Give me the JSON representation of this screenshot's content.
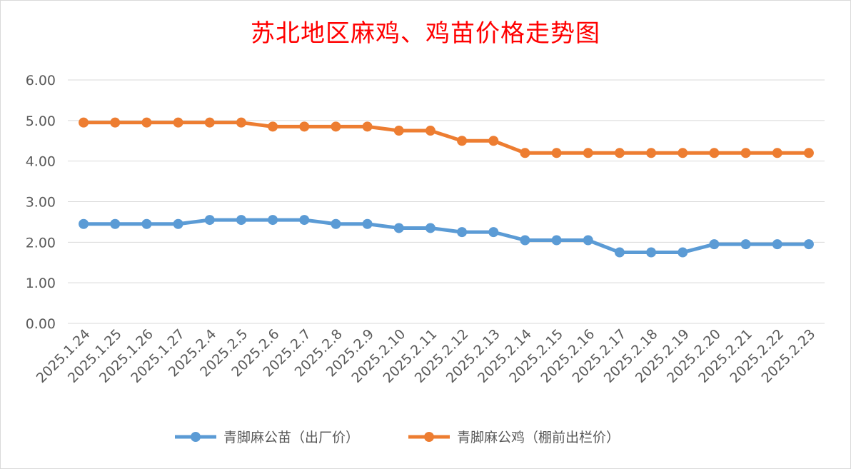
{
  "chart_data": {
    "type": "line",
    "title": "苏北地区麻鸡、鸡苗价格走势图",
    "xlabel": "",
    "ylabel": "",
    "ylim": [
      0,
      6
    ],
    "yticks": [
      "0.00",
      "1.00",
      "2.00",
      "3.00",
      "4.00",
      "5.00",
      "6.00"
    ],
    "categories": [
      "2025.1.24",
      "2025.1.25",
      "2025.1.26",
      "2025.1.27",
      "2025.2.4",
      "2025.2.5",
      "2025.2.6",
      "2025.2.7",
      "2025.2.8",
      "2025.2.9",
      "2025.2.10",
      "2025.2.11",
      "2025.2.12",
      "2025.2.13",
      "2025.2.14",
      "2025.2.15",
      "2025.2.16",
      "2025.2.17",
      "2025.2.18",
      "2025.2.19",
      "2025.2.20",
      "2025.2.21",
      "2025.2.22",
      "2025.2.23"
    ],
    "series": [
      {
        "name": "青脚麻公苗（出厂价）",
        "color": "#5b9bd5",
        "values": [
          2.45,
          2.45,
          2.45,
          2.45,
          2.55,
          2.55,
          2.55,
          2.55,
          2.45,
          2.45,
          2.35,
          2.35,
          2.25,
          2.25,
          2.05,
          2.05,
          2.05,
          1.75,
          1.75,
          1.75,
          1.95,
          1.95,
          1.95,
          1.95
        ]
      },
      {
        "name": "青脚麻公鸡（棚前出栏价）",
        "color": "#ed7d31",
        "values": [
          4.95,
          4.95,
          4.95,
          4.95,
          4.95,
          4.95,
          4.85,
          4.85,
          4.85,
          4.85,
          4.75,
          4.75,
          4.5,
          4.5,
          4.2,
          4.2,
          4.2,
          4.2,
          4.2,
          4.2,
          4.2,
          4.2,
          4.2,
          4.2
        ]
      }
    ],
    "grid": true,
    "legend_position": "bottom"
  }
}
